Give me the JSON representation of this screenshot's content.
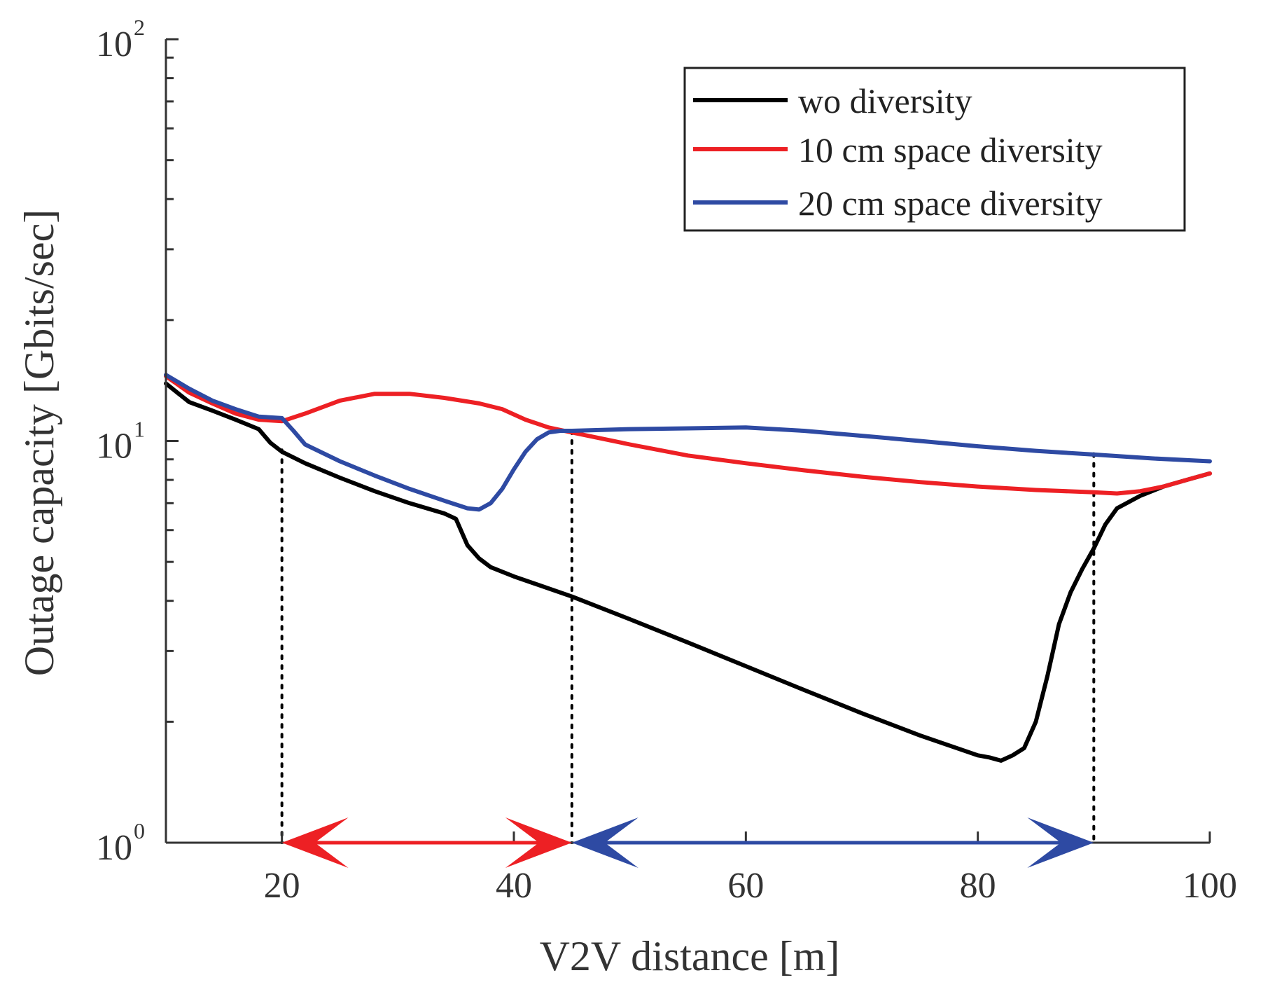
{
  "chart_data": {
    "type": "line",
    "title": "",
    "xlabel": "V2V distance [m]",
    "ylabel": "Outage capacity [Gbits/sec]",
    "xlim": [
      10,
      100
    ],
    "ylim": [
      1,
      100
    ],
    "yscale": "log",
    "xticks": [
      20,
      40,
      60,
      80,
      100
    ],
    "yticks": [
      {
        "value": 1,
        "base": "10",
        "exp": "0"
      },
      {
        "value": 10,
        "base": "10",
        "exp": "1"
      },
      {
        "value": 100,
        "base": "10",
        "exp": "2"
      }
    ],
    "grid": false,
    "legend_position": "top-right",
    "series": [
      {
        "name": "wo diversity",
        "color": "#000000",
        "x": [
          10,
          12,
          14,
          16,
          18,
          19,
          20,
          22,
          25,
          28,
          31,
          34,
          35,
          36,
          37,
          38,
          40,
          45,
          50,
          55,
          60,
          65,
          70,
          75,
          80,
          81,
          82,
          83,
          84,
          85,
          86,
          87,
          88,
          89,
          90,
          91,
          92,
          94,
          96,
          98,
          100
        ],
        "y": [
          13.9,
          12.5,
          11.9,
          11.3,
          10.7,
          9.9,
          9.4,
          8.8,
          8.1,
          7.5,
          7.0,
          6.6,
          6.4,
          5.5,
          5.1,
          4.85,
          4.6,
          4.1,
          3.6,
          3.15,
          2.75,
          2.4,
          2.1,
          1.85,
          1.65,
          1.63,
          1.6,
          1.65,
          1.72,
          2.0,
          2.6,
          3.5,
          4.2,
          4.8,
          5.4,
          6.2,
          6.8,
          7.3,
          7.7,
          8.0,
          8.3
        ]
      },
      {
        "name": "10 cm space diversity",
        "color": "#ed2024",
        "x": [
          10,
          12,
          14,
          16,
          18,
          20,
          22,
          25,
          28,
          31,
          34,
          37,
          39,
          41,
          43,
          45,
          50,
          55,
          60,
          65,
          70,
          75,
          80,
          85,
          90,
          92,
          94,
          96,
          98,
          100
        ],
        "y": [
          14.5,
          13.2,
          12.4,
          11.7,
          11.3,
          11.2,
          11.7,
          12.6,
          13.1,
          13.1,
          12.8,
          12.4,
          12.0,
          11.3,
          10.8,
          10.5,
          9.8,
          9.2,
          8.8,
          8.45,
          8.15,
          7.9,
          7.7,
          7.55,
          7.45,
          7.4,
          7.5,
          7.7,
          8.0,
          8.3
        ]
      },
      {
        "name": "20 cm space diversity",
        "color": "#2e4aa3",
        "x": [
          10,
          12,
          14,
          16,
          18,
          20,
          21,
          22,
          25,
          28,
          31,
          34,
          36,
          37,
          38,
          39,
          40,
          41,
          42,
          43,
          44,
          45,
          50,
          55,
          60,
          65,
          70,
          75,
          80,
          85,
          90,
          95,
          100
        ],
        "y": [
          14.6,
          13.5,
          12.6,
          12.0,
          11.5,
          11.4,
          10.6,
          9.8,
          8.9,
          8.2,
          7.6,
          7.1,
          6.8,
          6.75,
          7.0,
          7.6,
          8.5,
          9.4,
          10.1,
          10.5,
          10.6,
          10.6,
          10.7,
          10.75,
          10.8,
          10.6,
          10.3,
          10.0,
          9.7,
          9.45,
          9.25,
          9.05,
          8.9
        ]
      }
    ],
    "annotations": {
      "dotted_lines_x": [
        20,
        45,
        90
      ],
      "arrows": [
        {
          "from": 20,
          "to": 45,
          "color": "#ed2024"
        },
        {
          "from": 45,
          "to": 90,
          "color": "#2e4aa3"
        }
      ]
    }
  }
}
